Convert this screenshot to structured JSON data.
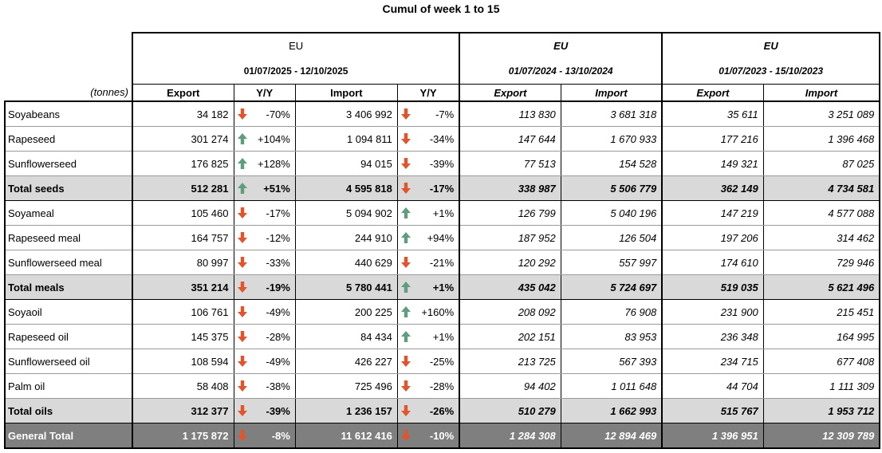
{
  "title": "Cumul of week 1 to 15",
  "colors": {
    "up": "#5f9d7d",
    "down": "#e2552c",
    "total_bg": "#d9d9d9",
    "grand_bg": "#7f7f7f"
  },
  "unit_label": "(tonnes)",
  "periods": [
    {
      "region": "EU",
      "range": "01/07/2025 - 12/10/2025"
    },
    {
      "region": "EU",
      "range": "01/07/2024 - 13/10/2024"
    },
    {
      "region": "EU",
      "range": "01/07/2023 - 15/10/2023"
    }
  ],
  "columns": {
    "export": "Export",
    "yy": "Y/Y",
    "import": "Import"
  },
  "rows": [
    {
      "name": "Soyabeans",
      "type": "normal",
      "exp": "34 182",
      "exp_dir": "down",
      "exp_yy": "-70%",
      "imp": "3 406 992",
      "imp_dir": "down",
      "imp_yy": "-7%",
      "p2_exp": "113 830",
      "p2_imp": "3 681 318",
      "p3_exp": "35 611",
      "p3_imp": "3 251 089"
    },
    {
      "name": "Rapeseed",
      "type": "normal",
      "exp": "301 274",
      "exp_dir": "up",
      "exp_yy": "+104%",
      "imp": "1 094 811",
      "imp_dir": "down",
      "imp_yy": "-34%",
      "p2_exp": "147 644",
      "p2_imp": "1 670 933",
      "p3_exp": "177 216",
      "p3_imp": "1 396 468"
    },
    {
      "name": "Sunflowerseed",
      "type": "normal",
      "exp": "176 825",
      "exp_dir": "up",
      "exp_yy": "+128%",
      "imp": "94 015",
      "imp_dir": "down",
      "imp_yy": "-39%",
      "p2_exp": "77 513",
      "p2_imp": "154 528",
      "p3_exp": "149 321",
      "p3_imp": "87 025"
    },
    {
      "name": "Total seeds",
      "type": "total",
      "exp": "512 281",
      "exp_dir": "up",
      "exp_yy": "+51%",
      "imp": "4 595 818",
      "imp_dir": "down",
      "imp_yy": "-17%",
      "p2_exp": "338 987",
      "p2_imp": "5 506 779",
      "p3_exp": "362 149",
      "p3_imp": "4 734 581"
    },
    {
      "name": "Soyameal",
      "type": "normal",
      "exp": "105 460",
      "exp_dir": "down",
      "exp_yy": "-17%",
      "imp": "5 094 902",
      "imp_dir": "up",
      "imp_yy": "+1%",
      "p2_exp": "126 799",
      "p2_imp": "5 040 196",
      "p3_exp": "147 219",
      "p3_imp": "4 577 088"
    },
    {
      "name": "Rapeseed meal",
      "type": "normal",
      "exp": "164 757",
      "exp_dir": "down",
      "exp_yy": "-12%",
      "imp": "244 910",
      "imp_dir": "up",
      "imp_yy": "+94%",
      "p2_exp": "187 952",
      "p2_imp": "126 504",
      "p3_exp": "197 206",
      "p3_imp": "314 462"
    },
    {
      "name": "Sunflowerseed meal",
      "type": "normal",
      "exp": "80 997",
      "exp_dir": "down",
      "exp_yy": "-33%",
      "imp": "440 629",
      "imp_dir": "down",
      "imp_yy": "-21%",
      "p2_exp": "120 292",
      "p2_imp": "557 997",
      "p3_exp": "174 610",
      "p3_imp": "729 946"
    },
    {
      "name": "Total meals",
      "type": "total",
      "exp": "351 214",
      "exp_dir": "down",
      "exp_yy": "-19%",
      "imp": "5 780 441",
      "imp_dir": "up",
      "imp_yy": "+1%",
      "p2_exp": "435 042",
      "p2_imp": "5 724 697",
      "p3_exp": "519 035",
      "p3_imp": "5 621 496"
    },
    {
      "name": "Soyaoil",
      "type": "normal",
      "exp": "106 761",
      "exp_dir": "down",
      "exp_yy": "-49%",
      "imp": "200 225",
      "imp_dir": "up",
      "imp_yy": "+160%",
      "p2_exp": "208 092",
      "p2_imp": "76 908",
      "p3_exp": "231 900",
      "p3_imp": "215 451"
    },
    {
      "name": "Rapeseed oil",
      "type": "normal",
      "exp": "145 375",
      "exp_dir": "down",
      "exp_yy": "-28%",
      "imp": "84 434",
      "imp_dir": "up",
      "imp_yy": "+1%",
      "p2_exp": "202 151",
      "p2_imp": "83 953",
      "p3_exp": "236 348",
      "p3_imp": "164 995"
    },
    {
      "name": "Sunflowerseed oil",
      "type": "normal",
      "exp": "108 594",
      "exp_dir": "down",
      "exp_yy": "-49%",
      "imp": "426 227",
      "imp_dir": "down",
      "imp_yy": "-25%",
      "p2_exp": "213 725",
      "p2_imp": "567 393",
      "p3_exp": "234 715",
      "p3_imp": "677 408"
    },
    {
      "name": "Palm oil",
      "type": "normal",
      "exp": "58 408",
      "exp_dir": "down",
      "exp_yy": "-38%",
      "imp": "725 496",
      "imp_dir": "down",
      "imp_yy": "-28%",
      "p2_exp": "94 402",
      "p2_imp": "1 011 648",
      "p3_exp": "44 704",
      "p3_imp": "1 111 309"
    },
    {
      "name": "Total oils",
      "type": "total",
      "exp": "312 377",
      "exp_dir": "down",
      "exp_yy": "-39%",
      "imp": "1 236 157",
      "imp_dir": "down",
      "imp_yy": "-26%",
      "p2_exp": "510 279",
      "p2_imp": "1 662 993",
      "p3_exp": "515 767",
      "p3_imp": "1 953 712"
    },
    {
      "name": "General Total",
      "type": "grand",
      "exp": "1 175 872",
      "exp_dir": "down",
      "exp_yy": "-8%",
      "imp": "11 612 416",
      "imp_dir": "down",
      "imp_yy": "-10%",
      "p2_exp": "1 284 308",
      "p2_imp": "12 894 469",
      "p3_exp": "1 396 951",
      "p3_imp": "12 309 789"
    }
  ]
}
